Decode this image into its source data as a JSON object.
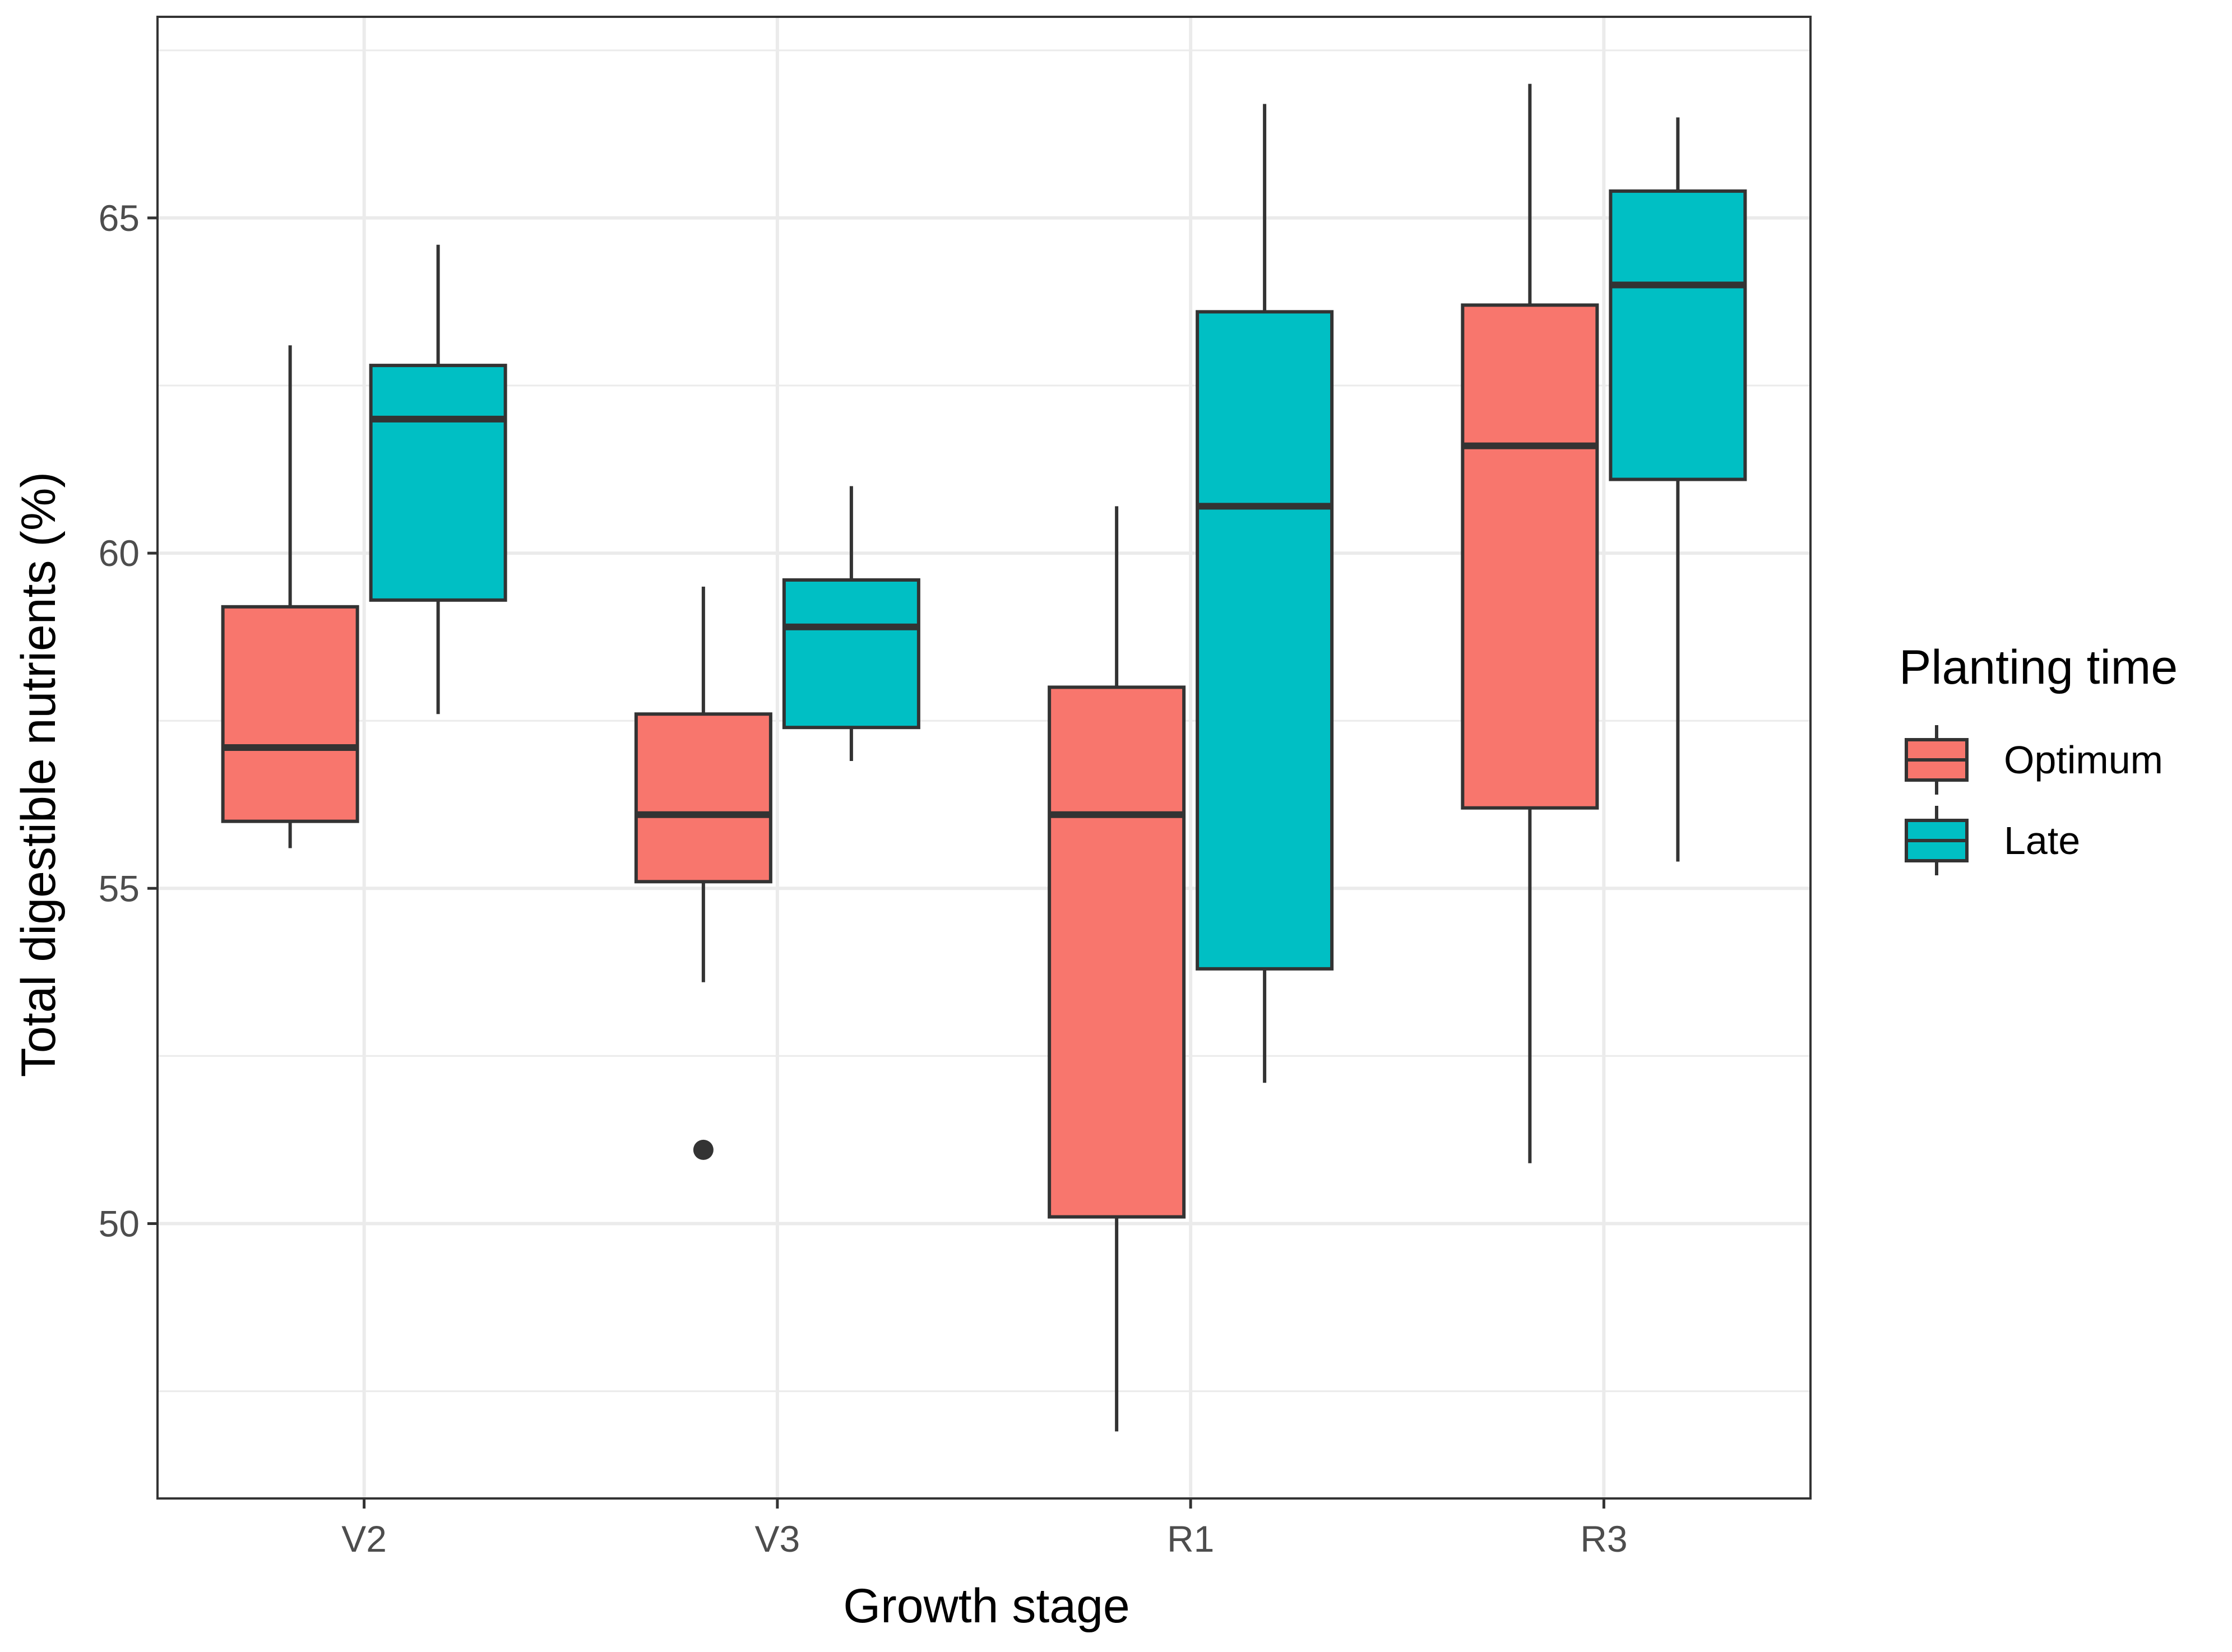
{
  "chart_data": {
    "type": "box",
    "xlabel": "Growth stage",
    "ylabel": "Total digestible nutrients (%)",
    "categories": [
      "V2",
      "V3",
      "R1",
      "R3"
    ],
    "ylim": [
      45.9,
      68.0
    ],
    "yticks": [
      50,
      55,
      60,
      65
    ],
    "yminor": [
      47.5,
      52.5,
      57.5,
      62.5,
      67.5
    ],
    "grid": true,
    "legend": {
      "title": "Planting time",
      "position": "right",
      "entries": [
        "Optimum",
        "Late"
      ]
    },
    "series": [
      {
        "name": "Optimum",
        "color": "#F8766D",
        "boxes": [
          {
            "category": "V2",
            "whisker_low": 55.6,
            "q1": 56.0,
            "median": 57.1,
            "q3": 59.2,
            "whisker_high": 63.1,
            "outliers": []
          },
          {
            "category": "V3",
            "whisker_low": 53.6,
            "q1": 55.1,
            "median": 56.1,
            "q3": 57.6,
            "whisker_high": 59.5,
            "outliers": [
              51.1
            ]
          },
          {
            "category": "R1",
            "whisker_low": 46.9,
            "q1": 50.1,
            "median": 56.1,
            "q3": 58.0,
            "whisker_high": 60.7,
            "outliers": []
          },
          {
            "category": "R3",
            "whisker_low": 50.9,
            "q1": 56.2,
            "median": 61.6,
            "q3": 63.7,
            "whisker_high": 67.0,
            "outliers": []
          }
        ]
      },
      {
        "name": "Late",
        "color": "#00BFC4",
        "boxes": [
          {
            "category": "V2",
            "whisker_low": 57.6,
            "q1": 59.3,
            "median": 62.0,
            "q3": 62.8,
            "whisker_high": 64.6,
            "outliers": []
          },
          {
            "category": "V3",
            "whisker_low": 56.9,
            "q1": 57.4,
            "median": 58.9,
            "q3": 59.6,
            "whisker_high": 61.0,
            "outliers": []
          },
          {
            "category": "R1",
            "whisker_low": 52.1,
            "q1": 53.8,
            "median": 60.7,
            "q3": 63.6,
            "whisker_high": 66.7,
            "outliers": []
          },
          {
            "category": "R3",
            "whisker_low": 55.4,
            "q1": 61.1,
            "median": 64.0,
            "q3": 65.4,
            "whisker_high": 66.5,
            "outliers": []
          }
        ]
      }
    ]
  }
}
